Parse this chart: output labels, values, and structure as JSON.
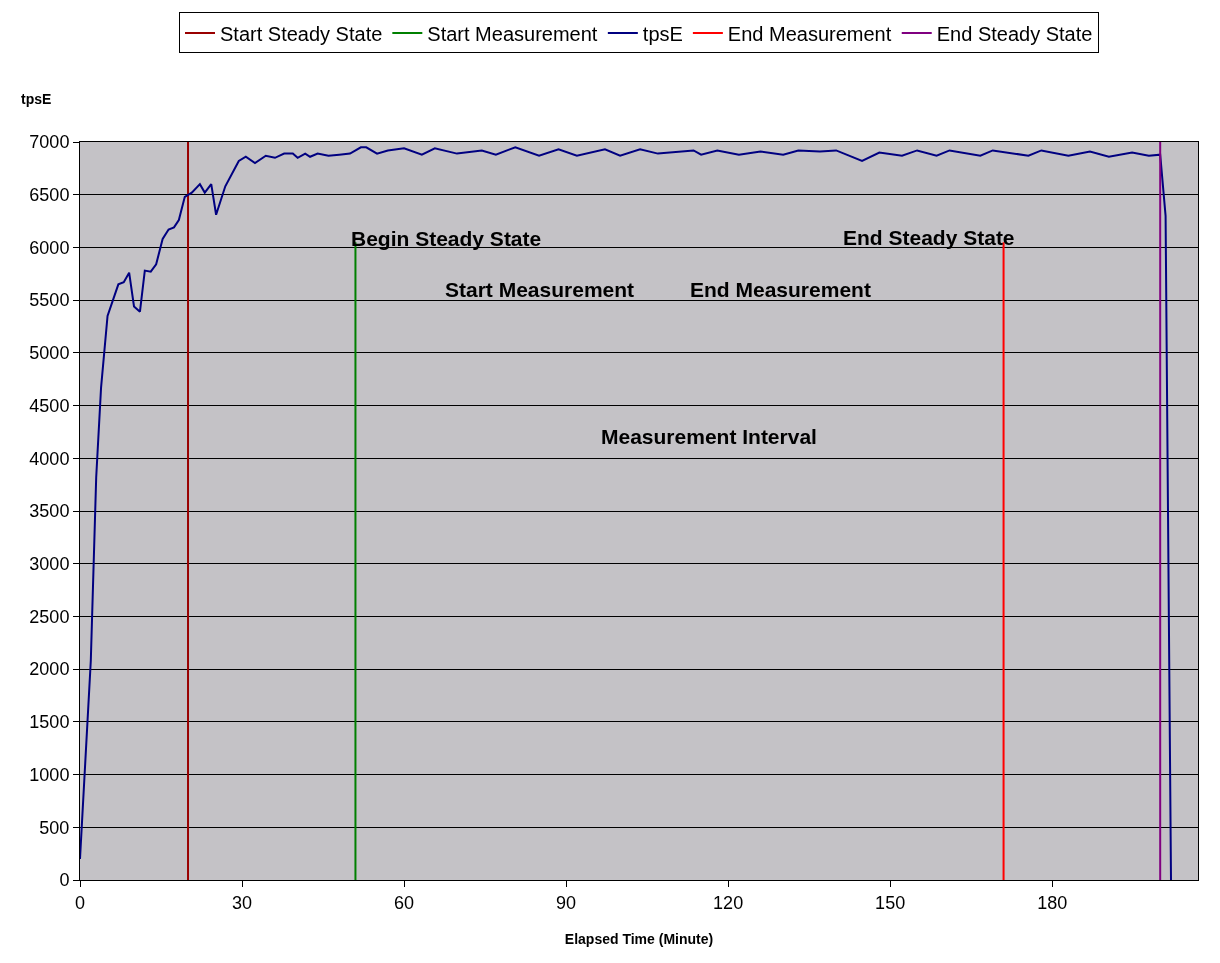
{
  "chart_data": {
    "type": "line",
    "xlabel": "Elapsed Time (Minute)",
    "ylabel": "tpsE",
    "xlim": [
      0,
      207
    ],
    "xticks": [
      0,
      30,
      60,
      90,
      120,
      150,
      180
    ],
    "ylim": [
      0,
      7000
    ],
    "yticks": [
      0,
      500,
      1000,
      1500,
      2000,
      2500,
      3000,
      3500,
      4000,
      4500,
      5000,
      5500,
      6000,
      6500,
      7000
    ],
    "grid": "y",
    "legend": "top",
    "marker": "none",
    "line_style": "solid",
    "series": [
      {
        "name": "Start Steady State",
        "color": "#990000",
        "x": [
          20,
          20
        ],
        "values": [
          0,
          7000
        ]
      },
      {
        "name": "Start Measurement",
        "color": "#008000",
        "x": [
          51,
          51
        ],
        "values": [
          0,
          6050
        ]
      },
      {
        "name": "tpsE",
        "color": "#000080",
        "x": [
          0,
          2,
          3,
          3.9,
          5.1,
          7.1,
          8.1,
          9.1,
          10,
          11.1,
          12,
          13.1,
          14.1,
          15.3,
          16.4,
          17.4,
          18.3,
          19.4,
          20.7,
          22.2,
          23.1,
          24.3,
          25.2,
          26.9,
          29.4,
          30.7,
          32.4,
          34.4,
          36.1,
          37.8,
          39.4,
          40.3,
          41.7,
          42.6,
          44,
          46,
          48,
          50,
          52,
          53,
          55,
          57,
          60,
          63.3,
          65.7,
          69.8,
          74.4,
          77,
          80.6,
          85,
          88.6,
          92,
          97.2,
          100,
          103.7,
          107,
          113.6,
          115,
          118,
          122,
          126,
          130.2,
          133,
          137,
          140,
          144.8,
          148,
          152.2,
          155,
          158.6,
          161,
          166.7,
          169,
          175.6,
          178,
          183,
          187,
          190.5,
          194.8,
          197.9,
          200,
          201,
          202
        ],
        "values": [
          200,
          2080,
          3820,
          4670,
          5350,
          5650,
          5670,
          5760,
          5440,
          5390,
          5780,
          5770,
          5840,
          6080,
          6170,
          6190,
          6260,
          6480,
          6520,
          6600,
          6520,
          6600,
          6310,
          6580,
          6820,
          6860,
          6800,
          6870,
          6850,
          6890,
          6890,
          6850,
          6890,
          6860,
          6890,
          6870,
          6880,
          6890,
          6950,
          6950,
          6890,
          6920,
          6940,
          6880,
          6940,
          6890,
          6920,
          6880,
          6950,
          6870,
          6930,
          6870,
          6930,
          6870,
          6930,
          6890,
          6920,
          6880,
          6920,
          6880,
          6910,
          6880,
          6920,
          6910,
          6920,
          6820,
          6900,
          6870,
          6920,
          6870,
          6920,
          6870,
          6920,
          6870,
          6920,
          6870,
          6910,
          6860,
          6900,
          6870,
          6880,
          6300,
          0
        ]
      },
      {
        "name": "End Measurement",
        "color": "#ff0000",
        "x": [
          171,
          171
        ],
        "values": [
          0,
          6050
        ]
      },
      {
        "name": "End Steady State",
        "color": "#800080",
        "x": [
          200,
          200
        ],
        "values": [
          0,
          7000
        ]
      }
    ],
    "annotations": [
      "Begin Steady State",
      "Start Measurement",
      "End Measurement",
      "End Steady State",
      "Measurement Interval"
    ]
  }
}
